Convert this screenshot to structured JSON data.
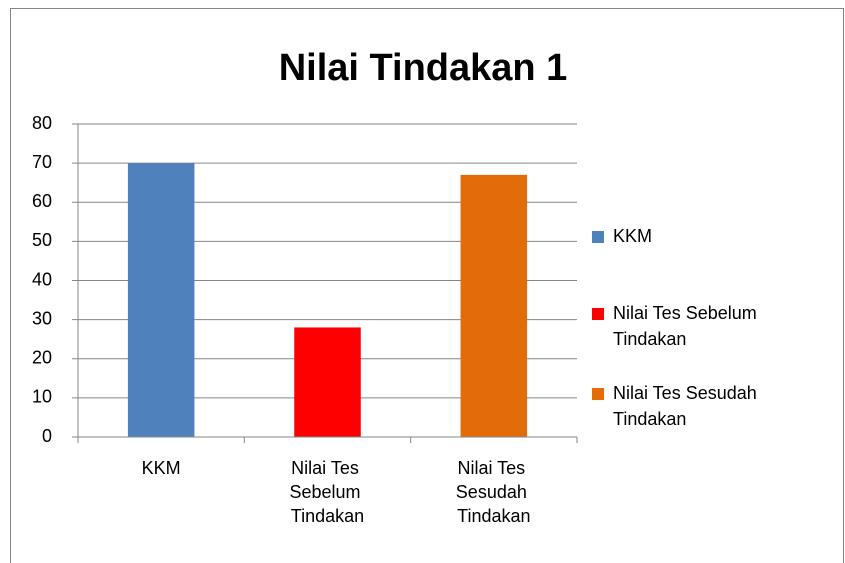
{
  "chart_data": {
    "type": "bar",
    "title": "Nilai Tindakan 1",
    "categories": [
      "KKM",
      "Nilai Tes Sebelum Tindakan",
      "Nilai Tes Sesudah Tindakan"
    ],
    "values": [
      70,
      28,
      67
    ],
    "colors": [
      "#4f81bd",
      "#ff0000",
      "#e36c0a"
    ],
    "ylim": [
      0,
      80
    ],
    "yticks": [
      0,
      10,
      20,
      30,
      40,
      50,
      60,
      70,
      80
    ],
    "grid": true,
    "legend": "right"
  }
}
